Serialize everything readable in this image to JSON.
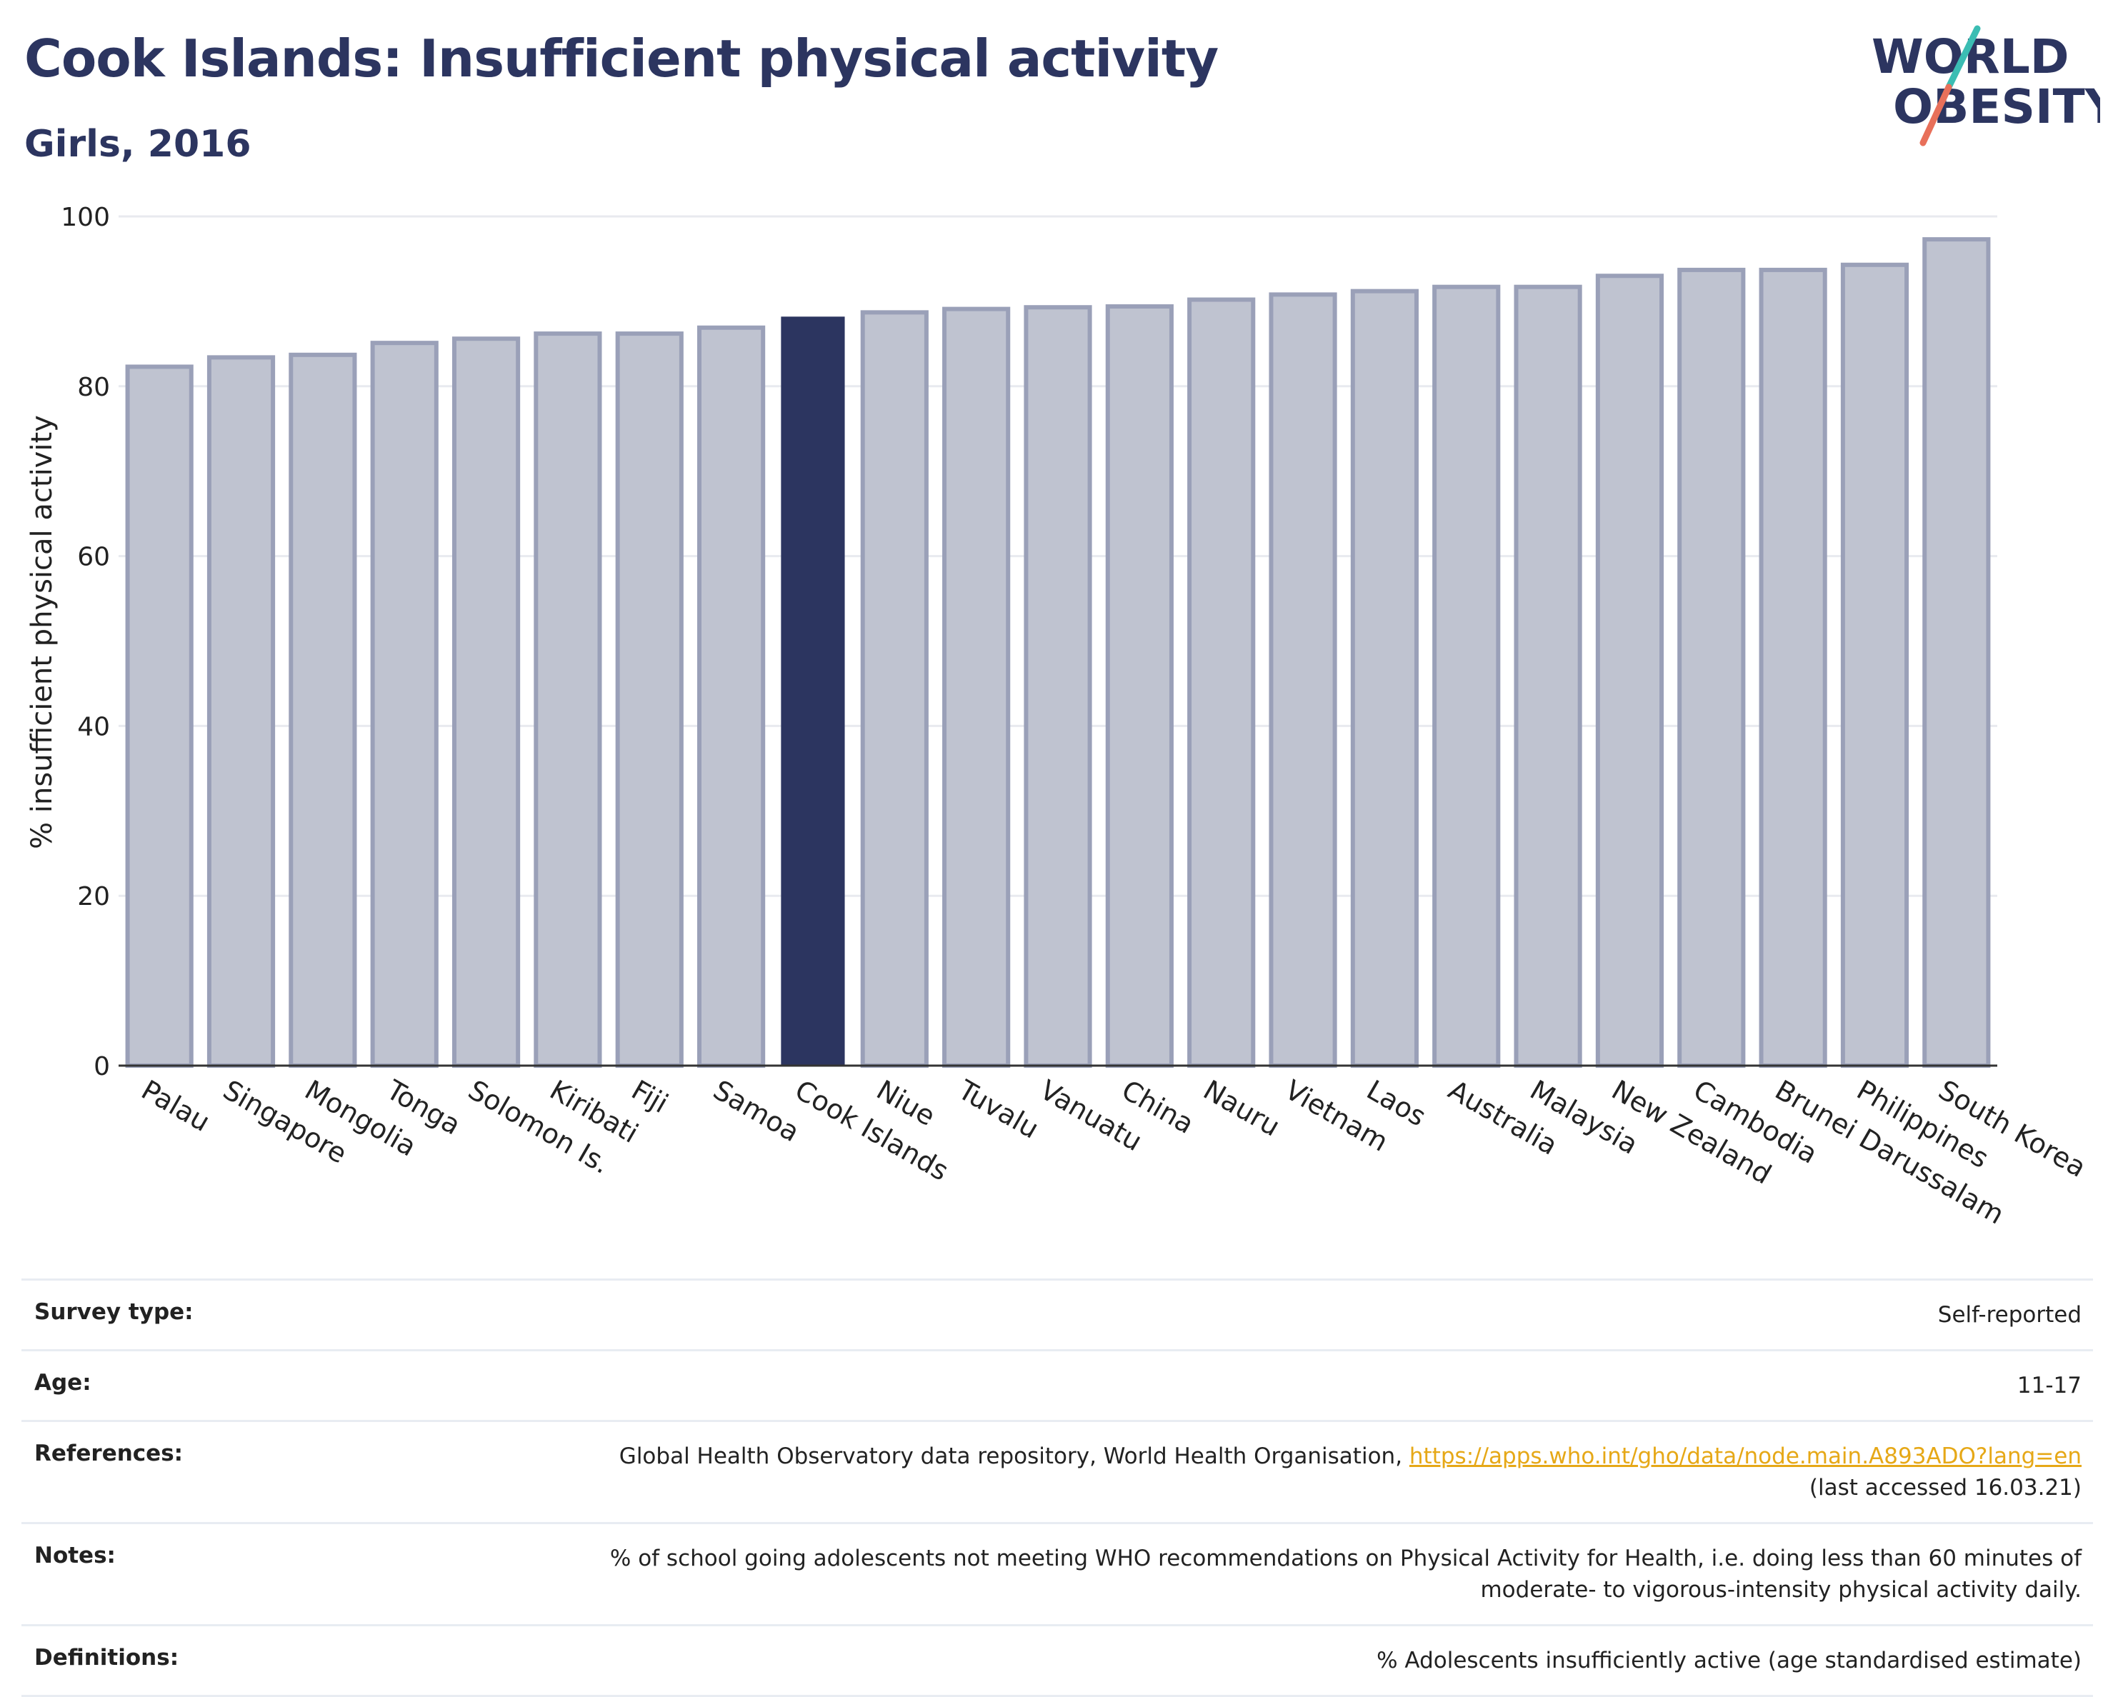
{
  "header": {
    "title": "Cook Islands: Insufficient physical activity",
    "subtitle": "Girls, 2016"
  },
  "logo": {
    "line1": "WORLD",
    "line2": "OBESITY",
    "text_color": "#2c3560",
    "slash_colors": [
      "#3bbdb3",
      "#e8705a"
    ]
  },
  "chart_data": {
    "type": "bar",
    "title": "Cook Islands: Insufficient physical activity",
    "subtitle": "Girls, 2016",
    "xlabel": "",
    "ylabel": "% insufficient physical activity",
    "ylim": [
      0,
      100
    ],
    "yticks": [
      0,
      20,
      40,
      60,
      80,
      100
    ],
    "grid": true,
    "highlight": "Cook Islands",
    "colors": {
      "bar": "#bfc3d0",
      "bar_border": "#9aa0b8",
      "highlight": "#2c3560",
      "grid": "#e8eaef"
    },
    "categories": [
      "Palau",
      "Singapore",
      "Mongolia",
      "Tonga",
      "Solomon Is.",
      "Kiribati",
      "Fiji",
      "Samoa",
      "Cook Islands",
      "Niue",
      "Tuvalu",
      "Vanuatu",
      "China",
      "Nauru",
      "Vietnam",
      "Laos",
      "Australia",
      "Malaysia",
      "New Zealand",
      "Cambodia",
      "Brunei Darussalam",
      "Philippines",
      "South Korea"
    ],
    "values": [
      82.3,
      83.4,
      83.7,
      85.1,
      85.6,
      86.2,
      86.2,
      86.9,
      88.2,
      88.7,
      89.1,
      89.3,
      89.4,
      90.2,
      90.8,
      91.2,
      91.7,
      91.7,
      93.0,
      93.7,
      93.7,
      94.3,
      97.3
    ]
  },
  "info": {
    "survey_type_label": "Survey type:",
    "survey_type_value": "Self-reported",
    "age_label": "Age:",
    "age_value": "11-17",
    "references_label": "References:",
    "references_text": "Global Health Observatory data repository, World Health Organisation, ",
    "references_link": "https://apps.who.int/gho/data/node.main.A893ADO?lang=en",
    "references_accessed": "(last accessed 16.03.21)",
    "notes_label": "Notes:",
    "notes_line1": "% of school going adolescents not meeting WHO recommendations on Physical Activity for Health, i.e. doing less than 60 minutes of",
    "notes_line2": "moderate- to vigorous-intensity physical activity daily.",
    "definitions_label": "Definitions:",
    "definitions_value": "% Adolescents insufficiently active (age standardised estimate)"
  }
}
